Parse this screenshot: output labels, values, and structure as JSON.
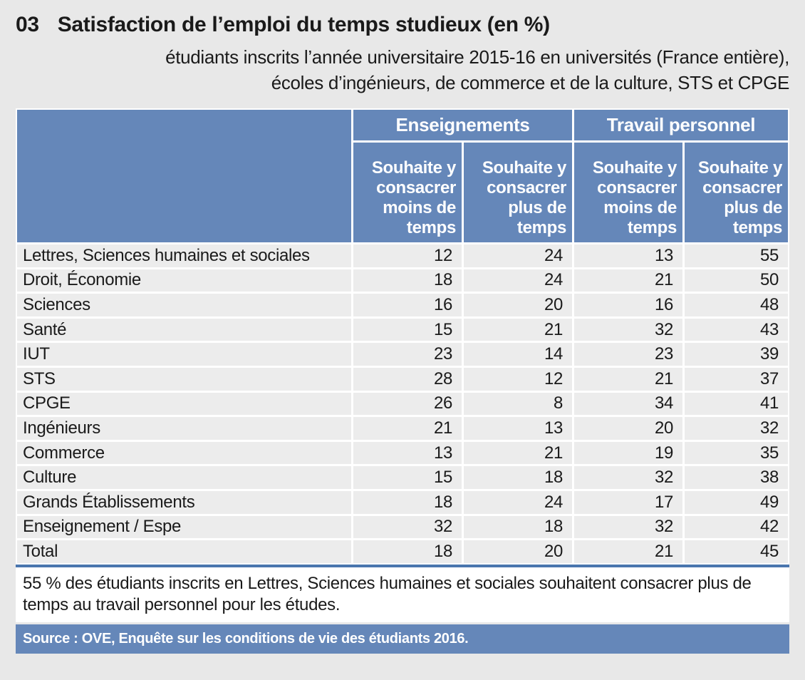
{
  "page": {
    "number": "03",
    "title": "Satisfaction de l’emploi du temps studieux (en %)",
    "subtitle_line1": "étudiants inscrits l’année universitaire 2015-16 en universités (France entière),",
    "subtitle_line2": "écoles d’ingénieurs, de commerce et de la culture, STS et CPGE"
  },
  "colors": {
    "header_blue": "#6587b9",
    "row_gray": "#ececec",
    "page_bg": "#e8e8e8",
    "table_bottom_rule_blue": "#4a76ae",
    "note_bg": "#ffffff"
  },
  "table": {
    "sub_headers": [
      "Souhaite y consacrer moins de temps",
      "Souhaite y consacrer plus de temps",
      "Souhaite y consacrer moins de temps",
      "Souhaite y consacrer plus de temps"
    ]
  },
  "chart_data": {
    "type": "table",
    "title": "Satisfaction de l’emploi du temps studieux (en %)",
    "unit": "%",
    "column_groups": [
      "Enseignements",
      "Travail personnel"
    ],
    "columns": [
      "Enseignements — Souhaite y consacrer moins de temps",
      "Enseignements — Souhaite y consacrer plus de temps",
      "Travail personnel — Souhaite y consacrer moins de temps",
      "Travail personnel — Souhaite y consacrer plus de temps"
    ],
    "rows": [
      {
        "label": "Lettres, Sciences humaines et sociales",
        "values": [
          12,
          24,
          13,
          55
        ]
      },
      {
        "label": "Droit, Économie",
        "values": [
          18,
          24,
          21,
          50
        ]
      },
      {
        "label": "Sciences",
        "values": [
          16,
          20,
          16,
          48
        ]
      },
      {
        "label": "Santé",
        "values": [
          15,
          21,
          32,
          43
        ]
      },
      {
        "label": "IUT",
        "values": [
          23,
          14,
          23,
          39
        ]
      },
      {
        "label": "STS",
        "values": [
          28,
          12,
          21,
          37
        ]
      },
      {
        "label": "CPGE",
        "values": [
          26,
          8,
          34,
          41
        ]
      },
      {
        "label": "Ingénieurs",
        "values": [
          21,
          13,
          20,
          32
        ]
      },
      {
        "label": "Commerce",
        "values": [
          13,
          21,
          19,
          35
        ]
      },
      {
        "label": "Culture",
        "values": [
          15,
          18,
          32,
          38
        ]
      },
      {
        "label": "Grands Établissements",
        "values": [
          18,
          24,
          17,
          49
        ]
      },
      {
        "label": "Enseignement / Espe",
        "values": [
          32,
          18,
          32,
          42
        ]
      },
      {
        "label": "Total",
        "values": [
          18,
          20,
          21,
          45
        ]
      }
    ]
  },
  "note": "55 % des étudiants inscrits en Lettres, Sciences humaines et sociales souhaitent consacrer plus de temps au travail personnel pour les études.",
  "source": "Source : OVE, Enquête sur les conditions de vie des étudiants 2016."
}
